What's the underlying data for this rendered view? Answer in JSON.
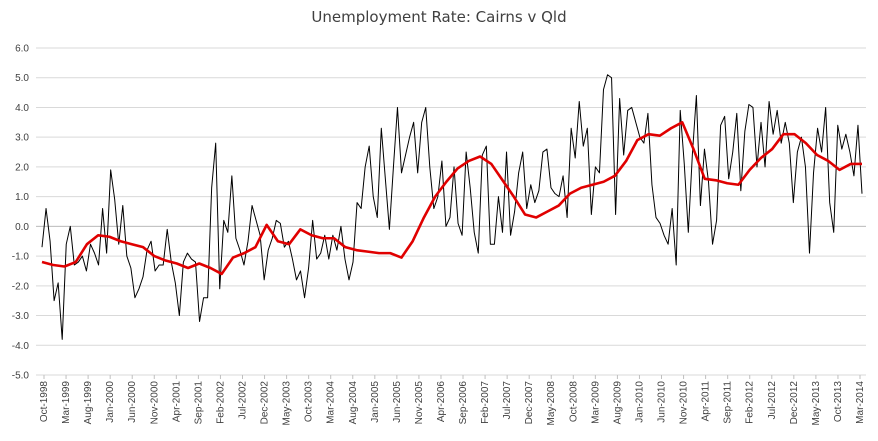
{
  "chart_data": {
    "type": "line",
    "title": "Unemployment Rate: Cairns v Qld",
    "xlabel": "",
    "ylabel": "",
    "ylim": [
      -5.0,
      6.0
    ],
    "y_ticks": [
      "6.0",
      "5.0",
      "4.0",
      "3.0",
      "2.0",
      "1.0",
      "0.0",
      "-1.0",
      "-2.0",
      "-3.0",
      "-4.0",
      "-5.0"
    ],
    "x_tick_labels": [
      "Oct-1998",
      "Mar-1999",
      "Aug-1999",
      "Jan-2000",
      "Jun-2000",
      "Nov-2000",
      "Apr-2001",
      "Sep-2001",
      "Feb-2002",
      "Jul-2002",
      "Dec-2002",
      "May-2003",
      "Oct-2003",
      "Mar-2004",
      "Aug-2004",
      "Jan-2005",
      "Jun-2005",
      "Nov-2005",
      "Apr-2006",
      "Sep-2006",
      "Feb-2007",
      "Jul-2007",
      "Dec-2007",
      "May-2008",
      "Oct-2008",
      "Mar-2009",
      "Aug-2009",
      "Jan-2010",
      "Jun-2010",
      "Nov-2010",
      "Apr-2011",
      "Sep-2011",
      "Feb-2012",
      "Jul-2012",
      "Dec-2012",
      "May-2013",
      "Oct-2013",
      "Mar-2014"
    ],
    "grid": true,
    "legend": "none",
    "series": [
      {
        "color": "#000000",
        "style": "thin",
        "values": [
          -0.7,
          0.6,
          -0.5,
          -2.5,
          -1.9,
          -3.8,
          -0.6,
          0.0,
          -1.3,
          -1.2,
          -1.0,
          -1.5,
          -0.6,
          -0.9,
          -1.3,
          0.6,
          -0.9,
          1.9,
          0.9,
          -0.6,
          0.7,
          -1.0,
          -1.4,
          -2.4,
          -2.1,
          -1.7,
          -0.8,
          -0.5,
          -1.5,
          -1.3,
          -1.3,
          -0.1,
          -1.2,
          -1.9,
          -3.0,
          -1.2,
          -0.9,
          -1.1,
          -1.2,
          -3.2,
          -2.4,
          -2.4,
          1.3,
          2.8,
          -2.1,
          0.2,
          -0.2,
          1.7,
          -0.4,
          -0.8,
          -1.3,
          -0.5,
          0.7,
          0.2,
          -0.3,
          -1.8,
          -0.8,
          -0.4,
          0.2,
          0.1,
          -0.7,
          -0.5,
          -1.1,
          -1.8,
          -1.5,
          -2.4,
          -1.4,
          0.2,
          -1.1,
          -0.9,
          -0.3,
          -1.1,
          -0.3,
          -0.8,
          0.0,
          -1.1,
          -1.8,
          -1.2,
          0.8,
          0.6,
          2.0,
          2.7,
          1.0,
          0.3,
          3.3,
          1.6,
          -0.1,
          2.0,
          4.0,
          1.8,
          2.4,
          3.0,
          3.5,
          1.8,
          3.5,
          4.0,
          2.0,
          0.6,
          1.0,
          2.2,
          0.0,
          0.3,
          2.0,
          0.1,
          -0.3,
          2.5,
          1.3,
          -0.2,
          -0.9,
          2.4,
          2.7,
          -0.6,
          -0.6,
          1.0,
          -0.2,
          2.5,
          -0.3,
          0.5,
          1.8,
          2.5,
          0.6,
          1.4,
          0.8,
          1.2,
          2.5,
          2.6,
          1.3,
          1.1,
          1.0,
          1.7,
          0.3,
          3.3,
          2.3,
          4.2,
          2.7,
          3.3,
          0.4,
          2.0,
          1.8,
          4.6,
          5.1,
          5.0,
          0.4,
          4.3,
          2.4,
          3.9,
          4.0,
          3.5,
          3.0,
          2.8,
          3.8,
          1.4,
          0.3,
          0.1,
          -0.3,
          -0.6,
          0.6,
          -1.3,
          3.9,
          2.1,
          -0.2,
          2.4,
          4.4,
          0.7,
          2.6,
          1.5,
          -0.6,
          0.2,
          3.4,
          3.7,
          1.6,
          2.5,
          3.8,
          1.2,
          3.2,
          4.1,
          4.0,
          2.0,
          3.5,
          2.0,
          4.2,
          3.1,
          3.9,
          2.8,
          3.5,
          2.8,
          0.8,
          2.5,
          3.0,
          2.0,
          -0.9,
          1.8,
          3.3,
          2.5,
          4.0,
          0.8,
          -0.2,
          3.4,
          2.6,
          3.1,
          2.5,
          1.7,
          3.4,
          1.1
        ]
      },
      {
        "color": "#e00000",
        "style": "thick",
        "values": [
          -1.2,
          -1.3,
          -1.35,
          -1.2,
          -0.6,
          -0.3,
          -0.35,
          -0.5,
          -0.6,
          -0.7,
          -1.0,
          -1.15,
          -1.25,
          -1.4,
          -1.25,
          -1.4,
          -1.6,
          -1.05,
          -0.9,
          -0.7,
          0.05,
          -0.5,
          -0.6,
          -0.1,
          -0.3,
          -0.4,
          -0.4,
          -0.7,
          -0.8,
          -0.85,
          -0.9,
          -0.9,
          -1.05,
          -0.5,
          0.3,
          1.0,
          1.5,
          1.95,
          2.2,
          2.35,
          2.1,
          1.55,
          1.0,
          0.4,
          0.3,
          0.5,
          0.7,
          1.1,
          1.3,
          1.4,
          1.5,
          1.7,
          2.2,
          2.9,
          3.1,
          3.05,
          3.3,
          3.5,
          2.6,
          1.6,
          1.55,
          1.45,
          1.4,
          1.9,
          2.3,
          2.6,
          3.1,
          3.1,
          2.8,
          2.4,
          2.2,
          1.9,
          2.1,
          2.1
        ]
      }
    ]
  }
}
